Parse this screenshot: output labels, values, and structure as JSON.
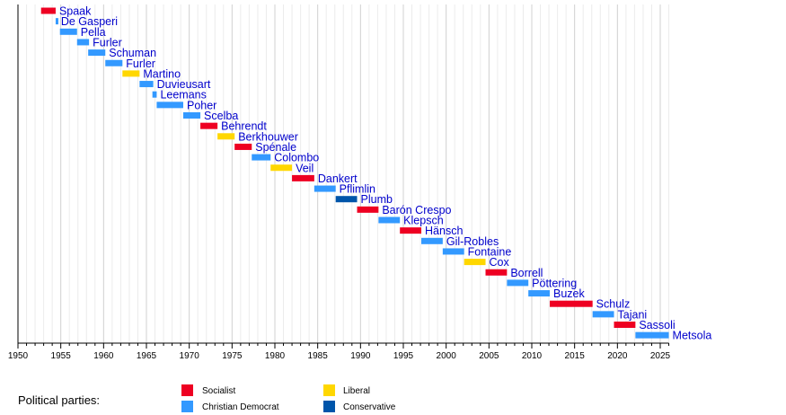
{
  "chart_data": {
    "type": "timeline",
    "xlim": [
      1950,
      2026
    ],
    "x_ticks": [
      1950,
      1955,
      1960,
      1965,
      1970,
      1975,
      1980,
      1985,
      1990,
      1995,
      2000,
      2005,
      2010,
      2015,
      2020,
      2025
    ],
    "grid": "vertical, yearly (major every 5 years)",
    "parties": {
      "socialist": {
        "label": "Socialist",
        "color": "#ee0022"
      },
      "christian_democrat": {
        "label": "Christian Democrat",
        "color": "#3399ff"
      },
      "liberal": {
        "label": "Liberal",
        "color": "#ffd700"
      },
      "conservative": {
        "label": "Conservative",
        "color": "#0055aa"
      }
    },
    "entries": [
      {
        "name": "Spaak",
        "party": "socialist",
        "start": 1952.7,
        "end": 1954.4
      },
      {
        "name": "De Gasperi",
        "party": "christian_democrat",
        "start": 1954.4,
        "end": 1954.6
      },
      {
        "name": "Pella",
        "party": "christian_democrat",
        "start": 1954.9,
        "end": 1956.9
      },
      {
        "name": "Furler",
        "party": "christian_democrat",
        "start": 1956.9,
        "end": 1958.3
      },
      {
        "name": "Schuman",
        "party": "christian_democrat",
        "start": 1958.2,
        "end": 1960.2
      },
      {
        "name": "Furler",
        "party": "christian_democrat",
        "start": 1960.2,
        "end": 1962.2
      },
      {
        "name": "Martino",
        "party": "liberal",
        "start": 1962.2,
        "end": 1964.2
      },
      {
        "name": "Duvieusart",
        "party": "christian_democrat",
        "start": 1964.2,
        "end": 1965.8
      },
      {
        "name": "Leemans",
        "party": "christian_democrat",
        "start": 1965.7,
        "end": 1966.2
      },
      {
        "name": "Poher",
        "party": "christian_democrat",
        "start": 1966.2,
        "end": 1969.3
      },
      {
        "name": "Scelba",
        "party": "christian_democrat",
        "start": 1969.3,
        "end": 1971.3
      },
      {
        "name": "Behrendt",
        "party": "socialist",
        "start": 1971.3,
        "end": 1973.3
      },
      {
        "name": "Berkhouwer",
        "party": "liberal",
        "start": 1973.3,
        "end": 1975.3
      },
      {
        "name": "Spénale",
        "party": "socialist",
        "start": 1975.3,
        "end": 1977.3
      },
      {
        "name": "Colombo",
        "party": "christian_democrat",
        "start": 1977.3,
        "end": 1979.5
      },
      {
        "name": "Veil",
        "party": "liberal",
        "start": 1979.5,
        "end": 1982.0
      },
      {
        "name": "Dankert",
        "party": "socialist",
        "start": 1982.0,
        "end": 1984.6
      },
      {
        "name": "Pflimlin",
        "party": "christian_democrat",
        "start": 1984.6,
        "end": 1987.1
      },
      {
        "name": "Plumb",
        "party": "conservative",
        "start": 1987.1,
        "end": 1989.6
      },
      {
        "name": "Barón Crespo",
        "party": "socialist",
        "start": 1989.6,
        "end": 1992.1
      },
      {
        "name": "Klepsch",
        "party": "christian_democrat",
        "start": 1992.1,
        "end": 1994.6
      },
      {
        "name": "Hänsch",
        "party": "socialist",
        "start": 1994.6,
        "end": 1997.1
      },
      {
        "name": "Gil-Robles",
        "party": "christian_democrat",
        "start": 1997.1,
        "end": 1999.6
      },
      {
        "name": "Fontaine",
        "party": "christian_democrat",
        "start": 1999.6,
        "end": 2002.1
      },
      {
        "name": "Cox",
        "party": "liberal",
        "start": 2002.1,
        "end": 2004.6
      },
      {
        "name": "Borrell",
        "party": "socialist",
        "start": 2004.6,
        "end": 2007.1
      },
      {
        "name": "Pöttering",
        "party": "christian_democrat",
        "start": 2007.1,
        "end": 2009.6
      },
      {
        "name": "Buzek",
        "party": "christian_democrat",
        "start": 2009.6,
        "end": 2012.1
      },
      {
        "name": "Schulz",
        "party": "socialist",
        "start": 2012.1,
        "end": 2017.1
      },
      {
        "name": "Tajani",
        "party": "christian_democrat",
        "start": 2017.1,
        "end": 2019.6
      },
      {
        "name": "Sassoli",
        "party": "socialist",
        "start": 2019.6,
        "end": 2022.1
      },
      {
        "name": "Metsola",
        "party": "christian_democrat",
        "start": 2022.1,
        "end": 2026.0
      }
    ]
  },
  "legend": {
    "title": "Political parties:",
    "items": [
      {
        "key": "socialist",
        "label": "Socialist"
      },
      {
        "key": "christian_democrat",
        "label": "Christian Democrat"
      },
      {
        "key": "liberal",
        "label": "Liberal"
      },
      {
        "key": "conservative",
        "label": "Conservative"
      }
    ]
  }
}
